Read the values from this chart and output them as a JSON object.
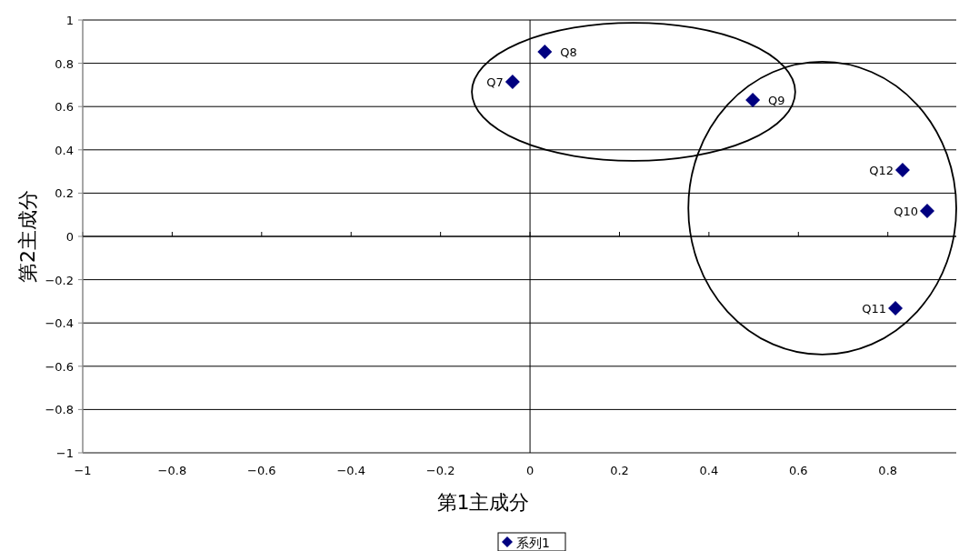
{
  "chart_data": {
    "type": "scatter",
    "xlabel": "第1主成分",
    "ylabel": "第2主成分",
    "x": [
      -0.039,
      0.033,
      0.498,
      0.888,
      0.817,
      0.833
    ],
    "series": [
      {
        "name": "系列1",
        "color": "#000080",
        "values": [
          0.714,
          0.853,
          0.63,
          0.118,
          -0.332,
          0.307
        ]
      }
    ],
    "annotations": [
      {
        "text": "Q7",
        "x": -0.039,
        "y": 0.714
      },
      {
        "text": "Q8",
        "x": 0.033,
        "y": 0.853
      },
      {
        "text": "Q9",
        "x": 0.498,
        "y": 0.63
      },
      {
        "text": "Q10",
        "x": 0.888,
        "y": 0.118
      },
      {
        "text": "Q11",
        "x": 0.817,
        "y": -0.332
      },
      {
        "text": "Q12",
        "x": 0.833,
        "y": 0.307
      }
    ],
    "xlim": [
      -1,
      0.953
    ],
    "xticks": [
      {
        "value": -1,
        "label": "−1"
      },
      {
        "value": -0.8,
        "label": "−0.8"
      },
      {
        "value": -0.6,
        "label": "−0.6"
      },
      {
        "value": -0.4,
        "label": "−0.4"
      },
      {
        "value": -0.2,
        "label": "−0.2"
      },
      0,
      0.2,
      0.4,
      0.6,
      0.8
    ],
    "ylim": [
      -1,
      1
    ],
    "yticks": [
      {
        "value": -1,
        "label": "−1"
      },
      {
        "value": -0.8,
        "label": "−0.8"
      },
      {
        "value": -0.6,
        "label": "−0.6"
      },
      {
        "value": -0.4,
        "label": "−0.4"
      },
      {
        "value": -0.2,
        "label": "−0.2"
      },
      0,
      0.2,
      0.4,
      0.6,
      0.8,
      1
    ],
    "ref_lines": [
      {
        "axis": "x",
        "value": 0,
        "color": "#000000"
      }
    ],
    "grid": "y",
    "legend": "bottom",
    "marker": "diamond"
  }
}
